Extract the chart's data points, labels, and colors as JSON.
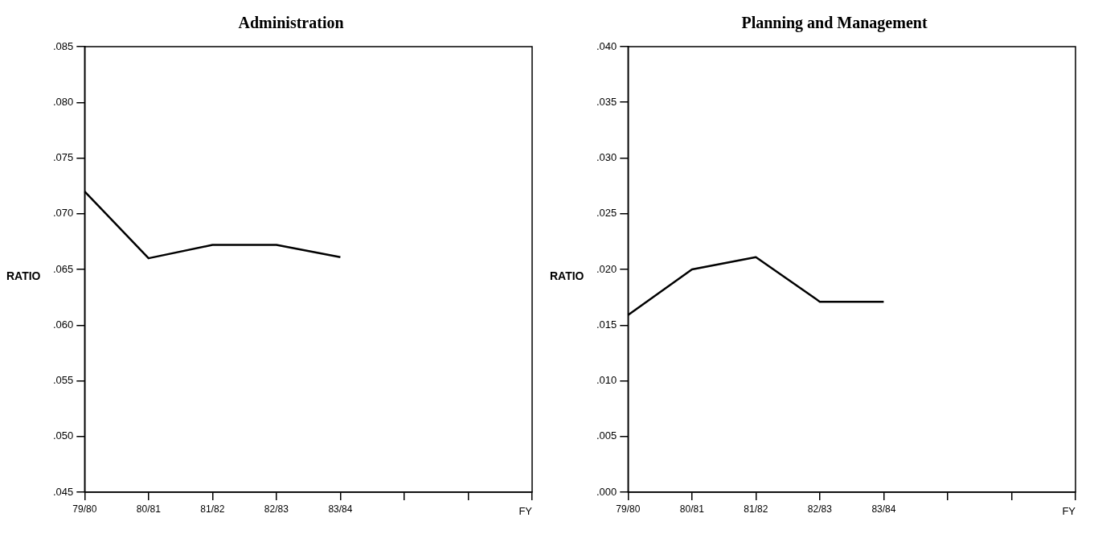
{
  "chart_data": [
    {
      "type": "line",
      "title": "Administration",
      "ylabel": "RATIO",
      "xlabel": "FY",
      "categories": [
        "79/80",
        "80/81",
        "81/82",
        "82/83",
        "83/84",
        null,
        null,
        null
      ],
      "marker": "none",
      "series": [
        {
          "color": "#000000",
          "values": [
            0.072,
            0.066,
            0.0672,
            0.0672,
            0.0661,
            null,
            null,
            null
          ]
        }
      ],
      "ylim": [
        0.045,
        0.085
      ],
      "yticks": [
        {
          "value": 0.045,
          "label": ".045"
        },
        {
          "value": 0.05,
          "label": ".050"
        },
        {
          "value": 0.055,
          "label": ".055"
        },
        {
          "value": 0.06,
          "label": ".060"
        },
        {
          "value": 0.065,
          "label": ".065"
        },
        {
          "value": 0.07,
          "label": ".070"
        },
        {
          "value": 0.075,
          "label": ".075"
        },
        {
          "value": 0.08,
          "label": ".080"
        },
        {
          "value": 0.085,
          "label": ".085"
        }
      ]
    },
    {
      "type": "line",
      "title": "Planning and Management",
      "ylabel": "RATIO",
      "xlabel": "FY",
      "categories": [
        "79/80",
        "80/81",
        "81/82",
        "82/83",
        "83/84",
        null,
        null,
        null
      ],
      "marker": "none",
      "series": [
        {
          "color": "#000000",
          "values": [
            0.0159,
            0.02,
            0.0211,
            0.0171,
            0.0171,
            null,
            null,
            null
          ]
        }
      ],
      "ylim": [
        0,
        0.04
      ],
      "yticks": [
        {
          "value": 0,
          "label": ".000"
        },
        {
          "value": 0.005,
          "label": ".005"
        },
        {
          "value": 0.01,
          "label": ".010"
        },
        {
          "value": 0.015,
          "label": ".015"
        },
        {
          "value": 0.02,
          "label": ".020"
        },
        {
          "value": 0.025,
          "label": ".025"
        },
        {
          "value": 0.03,
          "label": ".030"
        },
        {
          "value": 0.035,
          "label": ".035"
        },
        {
          "value": 0.04,
          "label": ".040"
        }
      ]
    }
  ]
}
